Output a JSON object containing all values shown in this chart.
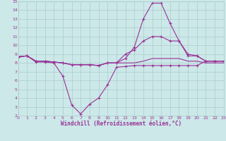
{
  "bg_color": "#cce8e8",
  "grid_color": "#aacccc",
  "line_color": "#993399",
  "xlabel": "Windchill (Refroidissement éolien,°C)",
  "xlabel_color": "#993399",
  "ylim": [
    2,
    15
  ],
  "xlim": [
    0,
    23
  ],
  "yticks": [
    2,
    3,
    4,
    5,
    6,
    7,
    8,
    9,
    10,
    11,
    12,
    13,
    14,
    15
  ],
  "xticks": [
    0,
    1,
    2,
    3,
    4,
    5,
    6,
    7,
    8,
    9,
    10,
    11,
    12,
    13,
    14,
    15,
    16,
    17,
    18,
    19,
    20,
    21,
    22,
    23
  ],
  "line1_x": [
    0,
    1,
    2,
    3,
    4,
    5,
    6,
    7,
    8,
    9,
    10,
    11,
    12,
    13,
    14,
    15,
    16,
    17,
    18,
    19,
    20,
    21,
    22,
    23
  ],
  "line1_y": [
    8.7,
    8.8,
    8.1,
    8.1,
    8.0,
    6.5,
    3.2,
    2.2,
    3.3,
    4.0,
    5.5,
    7.5,
    7.6,
    7.7,
    7.7,
    7.7,
    7.7,
    7.7,
    7.7,
    7.7,
    7.7,
    8.2,
    8.2,
    8.2
  ],
  "line2_x": [
    0,
    1,
    2,
    3,
    4,
    5,
    6,
    7,
    8,
    9,
    10,
    11,
    12,
    13,
    14,
    15,
    16,
    17,
    18,
    19,
    20,
    21,
    22,
    23
  ],
  "line2_y": [
    8.7,
    8.8,
    8.2,
    8.2,
    8.1,
    8.0,
    7.8,
    7.8,
    7.8,
    7.7,
    8.0,
    8.0,
    9.0,
    9.5,
    10.5,
    11.0,
    11.0,
    10.5,
    10.5,
    8.8,
    8.8,
    8.2,
    8.2,
    8.2
  ],
  "line3_x": [
    0,
    1,
    2,
    3,
    4,
    5,
    6,
    7,
    8,
    9,
    10,
    11,
    12,
    13,
    14,
    15,
    16,
    17,
    18,
    19,
    20,
    21,
    22,
    23
  ],
  "line3_y": [
    8.7,
    8.8,
    8.2,
    8.2,
    8.1,
    8.0,
    7.8,
    7.8,
    7.8,
    7.7,
    8.0,
    8.0,
    8.5,
    9.8,
    13.0,
    14.8,
    14.8,
    12.5,
    10.5,
    9.0,
    8.8,
    8.2,
    8.2,
    8.2
  ],
  "line4_x": [
    0,
    1,
    2,
    3,
    4,
    5,
    6,
    7,
    8,
    9,
    10,
    11,
    12,
    13,
    14,
    15,
    16,
    17,
    18,
    19,
    20,
    21,
    22,
    23
  ],
  "line4_y": [
    8.7,
    8.8,
    8.2,
    8.2,
    8.1,
    8.0,
    7.8,
    7.8,
    7.8,
    7.7,
    8.0,
    8.0,
    8.0,
    8.0,
    8.2,
    8.5,
    8.5,
    8.5,
    8.5,
    8.2,
    8.2,
    8.0,
    8.0,
    8.0
  ]
}
